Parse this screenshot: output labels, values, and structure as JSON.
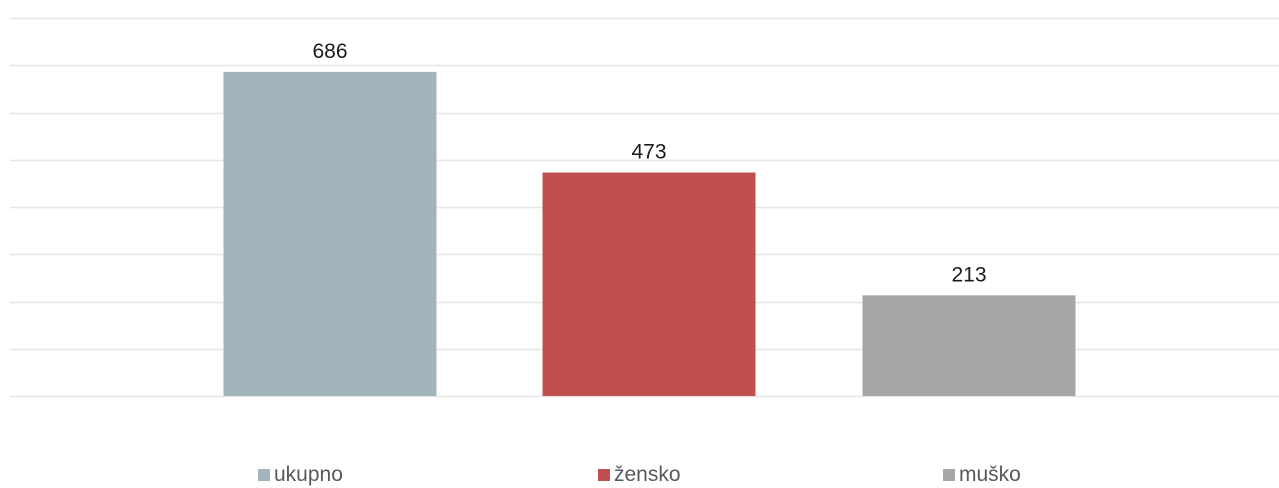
{
  "chart_data": {
    "type": "bar",
    "categories": [
      "ukupno",
      "žensko",
      "muško"
    ],
    "values": [
      686,
      473,
      213
    ],
    "colors": [
      "#a2b4bb",
      "#c0504d",
      "#a6a6a6"
    ],
    "title": "",
    "xlabel": "",
    "ylabel": "",
    "ylim": [
      0,
      800
    ],
    "grid": true,
    "legend_position": "bottom",
    "data_labels": true
  }
}
